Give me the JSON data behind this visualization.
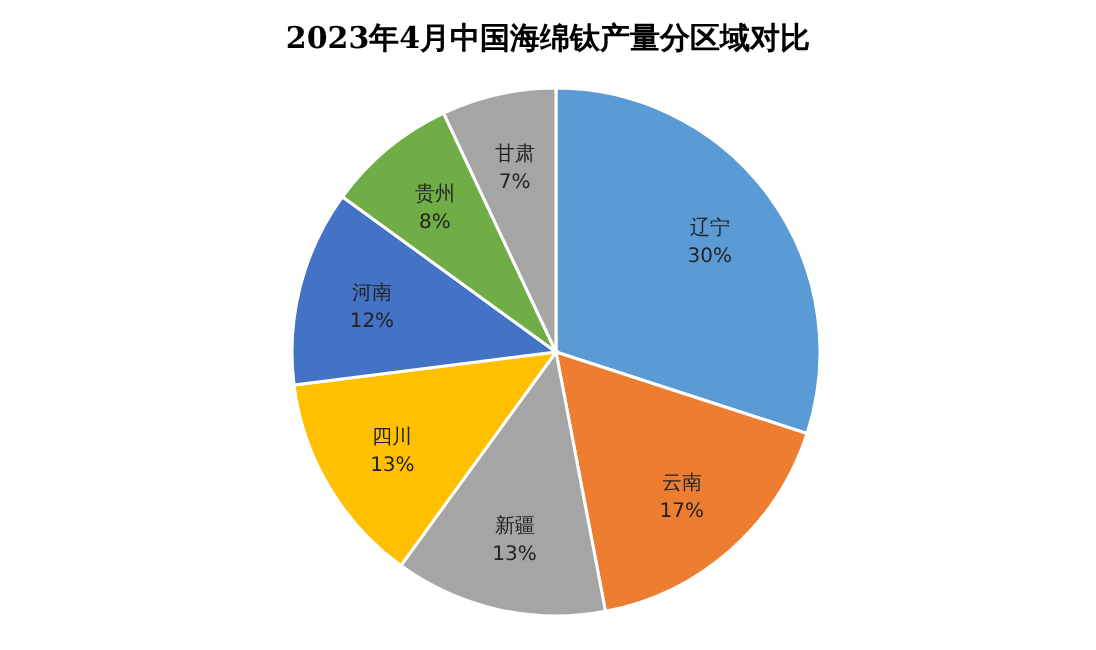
{
  "chart_data": {
    "type": "pie",
    "title": "2023年4月中国海绵钛产量分区域对比",
    "categories": [
      "辽宁",
      "云南",
      "新疆",
      "四川",
      "河南",
      "贵州",
      "甘肃"
    ],
    "values": [
      30,
      17,
      13,
      13,
      12,
      8,
      7
    ],
    "value_labels": [
      "30%",
      "17%",
      "13%",
      "13%",
      "12%",
      "8%",
      "7%"
    ],
    "colors": [
      "#5b9bd5",
      "#ed7d31",
      "#a5a5a5",
      "#ffc000",
      "#4472c4",
      "#70ad47",
      "#a5a5a5"
    ]
  }
}
